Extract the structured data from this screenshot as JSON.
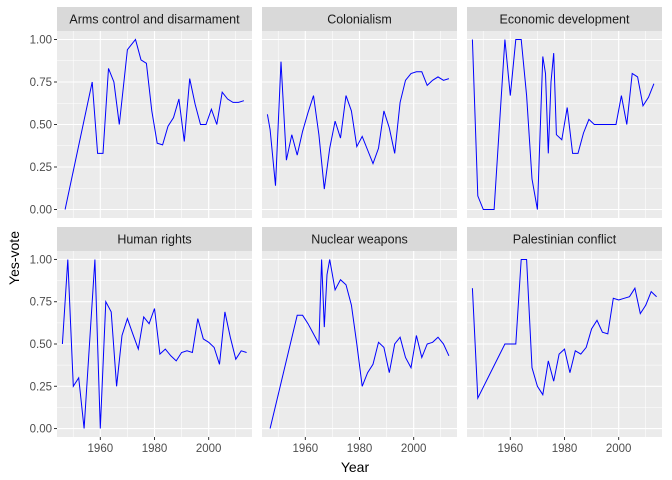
{
  "chart_data": {
    "type": "line",
    "layout": "facet-grid",
    "xlabel": "Year",
    "ylabel": "Yes-vote",
    "xlim": [
      1944,
      2016
    ],
    "ylim": [
      -0.05,
      1.05
    ],
    "x_ticks": [
      1960,
      1980,
      2000
    ],
    "y_ticks": [
      0.0,
      0.25,
      0.5,
      0.75,
      1.0
    ],
    "x_tick_labels": [
      "1960",
      "1980",
      "2000"
    ],
    "y_tick_labels": [
      "0.00",
      "0.25",
      "0.50",
      "0.75",
      "1.00"
    ],
    "grid": true,
    "legend": "none",
    "line_color": "#0000ff",
    "panel_bg": "#ebebeb",
    "strip_bg": "#d9d9d9",
    "series": [
      {
        "name": "Arms control and disarmament",
        "x": [
          1947,
          1957,
          1959,
          1961,
          1963,
          1965,
          1967,
          1970,
          1973,
          1975,
          1977,
          1979,
          1981,
          1983,
          1985,
          1987,
          1989,
          1991,
          1993,
          1995,
          1997,
          1999,
          2001,
          2003,
          2005,
          2007,
          2009,
          2011,
          2013
        ],
        "y": [
          0.0,
          0.75,
          0.33,
          0.33,
          0.83,
          0.75,
          0.5,
          0.94,
          1.0,
          0.88,
          0.86,
          0.58,
          0.39,
          0.38,
          0.49,
          0.54,
          0.65,
          0.4,
          0.77,
          0.62,
          0.5,
          0.5,
          0.59,
          0.5,
          0.69,
          0.65,
          0.63,
          0.63,
          0.64
        ]
      },
      {
        "name": "Colonialism",
        "x": [
          1946,
          1947,
          1949,
          1951,
          1953,
          1955,
          1957,
          1959,
          1961,
          1963,
          1965,
          1967,
          1969,
          1971,
          1973,
          1975,
          1977,
          1979,
          1981,
          1983,
          1985,
          1987,
          1989,
          1991,
          1993,
          1995,
          1997,
          1999,
          2001,
          2003,
          2005,
          2007,
          2009,
          2011,
          2013
        ],
        "y": [
          0.56,
          0.47,
          0.14,
          0.87,
          0.29,
          0.44,
          0.32,
          0.46,
          0.57,
          0.67,
          0.44,
          0.12,
          0.36,
          0.52,
          0.42,
          0.67,
          0.58,
          0.37,
          0.43,
          0.35,
          0.27,
          0.36,
          0.58,
          0.48,
          0.33,
          0.63,
          0.76,
          0.8,
          0.81,
          0.81,
          0.73,
          0.76,
          0.78,
          0.76,
          0.77
        ]
      },
      {
        "name": "Economic development",
        "x": [
          1946,
          1948,
          1950,
          1952,
          1954,
          1956,
          1958,
          1960,
          1962,
          1964,
          1966,
          1968,
          1970,
          1972,
          1973,
          1974,
          1975,
          1976,
          1977,
          1979,
          1981,
          1983,
          1985,
          1987,
          1989,
          1991,
          1993,
          1995,
          1997,
          1999,
          2001,
          2003,
          2005,
          2007,
          2009,
          2011,
          2013
        ],
        "y": [
          1.0,
          0.08,
          0.0,
          0.0,
          0.0,
          0.5,
          1.0,
          0.67,
          1.0,
          1.0,
          0.67,
          0.18,
          0.0,
          0.9,
          0.8,
          0.33,
          0.75,
          0.92,
          0.44,
          0.41,
          0.6,
          0.33,
          0.33,
          0.45,
          0.53,
          0.5,
          0.5,
          0.5,
          0.5,
          0.5,
          0.67,
          0.5,
          0.8,
          0.78,
          0.61,
          0.66,
          0.74
        ]
      },
      {
        "name": "Human rights",
        "x": [
          1946,
          1948,
          1950,
          1952,
          1954,
          1956,
          1958,
          1960,
          1962,
          1964,
          1966,
          1968,
          1970,
          1972,
          1974,
          1976,
          1978,
          1980,
          1982,
          1984,
          1986,
          1988,
          1990,
          1992,
          1994,
          1996,
          1998,
          2000,
          2002,
          2004,
          2006,
          2008,
          2010,
          2012,
          2014
        ],
        "y": [
          0.5,
          1.0,
          0.25,
          0.3,
          0.0,
          0.5,
          1.0,
          0.0,
          0.75,
          0.69,
          0.25,
          0.55,
          0.65,
          0.56,
          0.47,
          0.66,
          0.62,
          0.71,
          0.44,
          0.47,
          0.43,
          0.4,
          0.45,
          0.46,
          0.45,
          0.65,
          0.53,
          0.51,
          0.48,
          0.38,
          0.69,
          0.54,
          0.41,
          0.46,
          0.45
        ]
      },
      {
        "name": "Nuclear weapons",
        "x": [
          1947,
          1957,
          1959,
          1961,
          1963,
          1965,
          1966,
          1967,
          1968,
          1969,
          1971,
          1973,
          1975,
          1977,
          1979,
          1981,
          1983,
          1985,
          1987,
          1989,
          1991,
          1993,
          1995,
          1997,
          1999,
          2001,
          2003,
          2005,
          2007,
          2009,
          2011,
          2013
        ],
        "y": [
          0.0,
          0.67,
          0.67,
          0.62,
          0.56,
          0.5,
          1.0,
          0.6,
          0.91,
          1.0,
          0.82,
          0.88,
          0.85,
          0.73,
          0.5,
          0.25,
          0.33,
          0.38,
          0.51,
          0.48,
          0.33,
          0.5,
          0.54,
          0.42,
          0.36,
          0.55,
          0.42,
          0.5,
          0.51,
          0.54,
          0.5,
          0.43
        ]
      },
      {
        "name": "Palestinian conflict",
        "x": [
          1946,
          1948,
          1958,
          1960,
          1962,
          1964,
          1966,
          1968,
          1970,
          1972,
          1974,
          1976,
          1978,
          1980,
          1982,
          1984,
          1986,
          1988,
          1990,
          1992,
          1994,
          1996,
          1998,
          2000,
          2002,
          2004,
          2006,
          2008,
          2010,
          2012,
          2014
        ],
        "y": [
          0.83,
          0.18,
          0.5,
          0.5,
          0.5,
          1.0,
          1.0,
          0.36,
          0.25,
          0.2,
          0.4,
          0.28,
          0.44,
          0.47,
          0.33,
          0.46,
          0.44,
          0.48,
          0.59,
          0.64,
          0.57,
          0.56,
          0.77,
          0.76,
          0.77,
          0.78,
          0.83,
          0.68,
          0.73,
          0.81,
          0.78
        ]
      }
    ]
  }
}
